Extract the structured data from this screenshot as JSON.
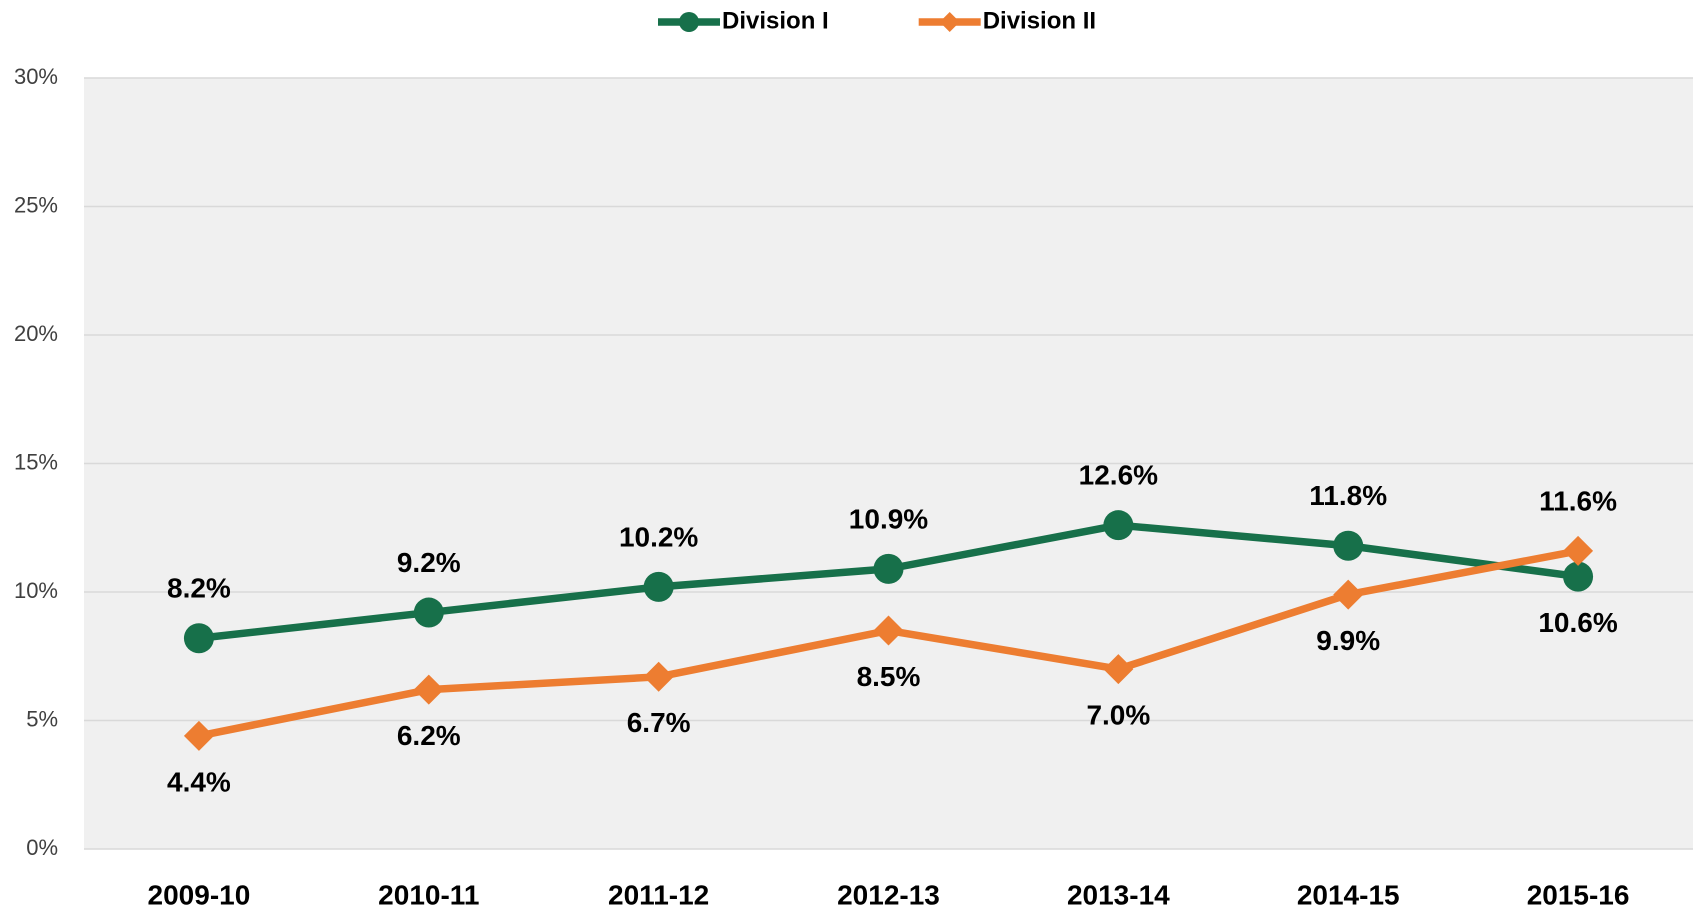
{
  "chart_data": {
    "type": "line",
    "categories": [
      "2009-10",
      "2010-11",
      "2011-12",
      "2012-13",
      "2013-14",
      "2014-15",
      "2015-16"
    ],
    "series": [
      {
        "name": "Division I",
        "color": "#17704a",
        "marker": "circle",
        "values": [
          8.2,
          9.2,
          10.2,
          10.9,
          12.6,
          11.8,
          10.6
        ],
        "value_labels": [
          "8.2%",
          "9.2%",
          "10.2%",
          "10.9%",
          "12.6%",
          "11.8%",
          "10.6%"
        ]
      },
      {
        "name": "Division II",
        "color": "#ed7d31",
        "marker": "diamond",
        "values": [
          4.4,
          6.2,
          6.7,
          8.5,
          7.0,
          9.9,
          11.6
        ],
        "value_labels": [
          "4.4%",
          "6.2%",
          "6.7%",
          "8.5%",
          "7.0%",
          "9.9%",
          "11.6%"
        ]
      }
    ],
    "ylim": [
      0,
      30
    ],
    "yticks": [
      {
        "value": 0,
        "label": "0%"
      },
      {
        "value": 5,
        "label": "5%"
      },
      {
        "value": 10,
        "label": "10%"
      },
      {
        "value": 15,
        "label": "15%"
      },
      {
        "value": 20,
        "label": "20%"
      },
      {
        "value": 25,
        "label": "25%"
      },
      {
        "value": 30,
        "label": "30%"
      }
    ],
    "grid": true,
    "legend": "top"
  }
}
